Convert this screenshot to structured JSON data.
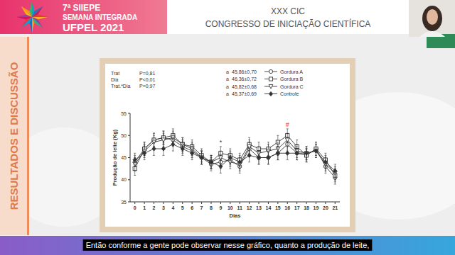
{
  "page": {
    "banner": {
      "edition": "7ª SIIEPE",
      "event": "SEMANA INTEGRADA",
      "place": "UFPEL 2021"
    },
    "header": {
      "title": "XXX CIC",
      "subtitle": "CONGRESSO DE INICIAÇÃO CIENTÍFICA"
    },
    "section": "RESULTADOS E DISCUSSÃO",
    "caption": "Então conforme a gente pode observar nesse gráfico, quanto a produção de leite,"
  },
  "chart_data": {
    "type": "line",
    "x_label": "Dias",
    "y_label": "Produção de leite (Kg)",
    "x": [
      0,
      1,
      2,
      3,
      4,
      5,
      6,
      7,
      8,
      9,
      10,
      11,
      12,
      13,
      14,
      15,
      16,
      17,
      18,
      19,
      20,
      21
    ],
    "xlim": [
      -0.5,
      21.5
    ],
    "xticks": [
      0,
      1,
      2,
      3,
      4,
      5,
      6,
      7,
      8,
      9,
      10,
      11,
      12,
      13,
      14,
      15,
      16,
      17,
      18,
      19,
      20,
      21
    ],
    "ylim": [
      35,
      55
    ],
    "yticks": [
      35,
      40,
      45,
      50,
      55
    ],
    "grid": false,
    "legend": "upper-right",
    "stats": [
      {
        "label": "Trat",
        "value": "P=0,81"
      },
      {
        "label": "Dia",
        "value": "P<0,01"
      },
      {
        "label": "Trat.*Dia",
        "value": "P=0,97"
      }
    ],
    "annotations": [
      {
        "text": "#",
        "x": 16,
        "color": "#d62728"
      },
      {
        "text": "*",
        "x": 9,
        "color": "#333333"
      }
    ],
    "series": [
      {
        "name": "Gordura A",
        "group": "a",
        "stat": "45,86±0,70",
        "color": "#333333",
        "marker": "circle-open",
        "line_style": "solid",
        "values": [
          44,
          47,
          49,
          49.5,
          49,
          47.5,
          46.5,
          45,
          43.5,
          44,
          44.5,
          43,
          47,
          45,
          45,
          46,
          48,
          46,
          45.5,
          47,
          43,
          40.5
        ],
        "errors": [
          1.5,
          1.5,
          1.5,
          1.5,
          1.5,
          1.5,
          1.5,
          1.5,
          1.5,
          1.5,
          1.5,
          1.5,
          1.5,
          1.5,
          1.5,
          1.5,
          1.5,
          1.5,
          1.5,
          1.5,
          1.5,
          1.5
        ]
      },
      {
        "name": "Gordura B",
        "group": "a",
        "stat": "46,36±0,72",
        "color": "#333333",
        "marker": "square-open",
        "line_style": "solid",
        "values": [
          42.5,
          47,
          49,
          49.5,
          50,
          48,
          47.5,
          45.5,
          44,
          46,
          45.5,
          44.5,
          48,
          47,
          47,
          48.5,
          50,
          47.5,
          45.5,
          47,
          44.5,
          41
        ],
        "errors": [
          1.5,
          1.5,
          1.5,
          1.5,
          1.5,
          1.5,
          1.5,
          1.5,
          1.5,
          1.5,
          1.5,
          1.5,
          1.5,
          1.5,
          1.5,
          1.5,
          1.5,
          1.5,
          1.5,
          1.5,
          1.5,
          1.5
        ]
      },
      {
        "name": "Gordura C",
        "group": "a",
        "stat": "45,82±0,68",
        "color": "#333333",
        "marker": "triangle-down-open",
        "line_style": "solid",
        "values": [
          43.5,
          46.5,
          48.5,
          49,
          49.5,
          48,
          47,
          45,
          44,
          45,
          44,
          43.5,
          47.5,
          46,
          46.5,
          47,
          49,
          46.5,
          46,
          46.5,
          43.5,
          41.5
        ],
        "errors": [
          1.5,
          1.5,
          1.5,
          1.5,
          1.5,
          1.5,
          1.5,
          1.5,
          1.5,
          1.5,
          1.5,
          1.5,
          1.5,
          1.5,
          1.5,
          1.5,
          1.5,
          1.5,
          1.5,
          1.5,
          1.5,
          1.5
        ]
      },
      {
        "name": "Controle",
        "group": "a",
        "stat": "45,37±0,69",
        "color": "#333333",
        "marker": "diamond",
        "line_style": "solid",
        "values": [
          44.5,
          46,
          47,
          47,
          48,
          47,
          46,
          45,
          44,
          43,
          45,
          44,
          45.5,
          45,
          45,
          46,
          46,
          46,
          46,
          46.5,
          44,
          42
        ],
        "errors": [
          1.5,
          1.5,
          1.5,
          1.5,
          1.5,
          1.5,
          1.5,
          1.5,
          1.5,
          1.5,
          1.5,
          1.5,
          1.5,
          1.5,
          1.5,
          1.5,
          1.5,
          1.5,
          1.5,
          1.5,
          1.5,
          1.5
        ]
      }
    ]
  }
}
